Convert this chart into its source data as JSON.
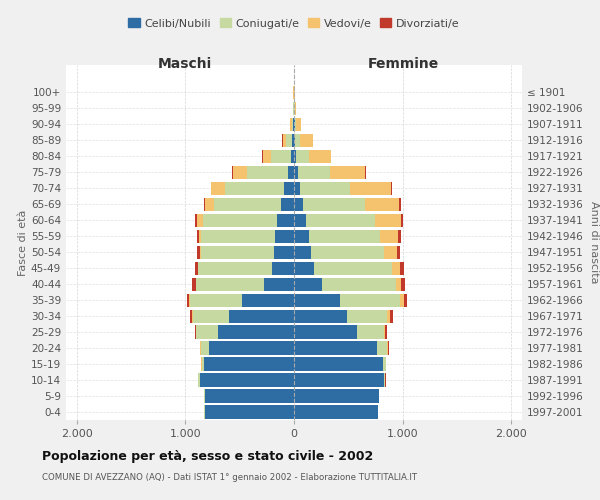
{
  "age_groups": [
    "0-4",
    "5-9",
    "10-14",
    "15-19",
    "20-24",
    "25-29",
    "30-34",
    "35-39",
    "40-44",
    "45-49",
    "50-54",
    "55-59",
    "60-64",
    "65-69",
    "70-74",
    "75-79",
    "80-84",
    "85-89",
    "90-94",
    "95-99",
    "100+"
  ],
  "birth_years": [
    "1997-2001",
    "1992-1996",
    "1987-1991",
    "1982-1986",
    "1977-1981",
    "1972-1976",
    "1967-1971",
    "1962-1966",
    "1957-1961",
    "1952-1956",
    "1947-1951",
    "1942-1946",
    "1937-1941",
    "1932-1936",
    "1927-1931",
    "1922-1926",
    "1917-1921",
    "1912-1916",
    "1907-1911",
    "1902-1906",
    "≤ 1901"
  ],
  "maschi_celibi": [
    820,
    820,
    870,
    830,
    780,
    700,
    600,
    480,
    280,
    200,
    180,
    175,
    160,
    120,
    90,
    55,
    30,
    15,
    8,
    4,
    2
  ],
  "maschi_coniugati": [
    5,
    5,
    10,
    20,
    80,
    200,
    330,
    480,
    620,
    680,
    680,
    680,
    680,
    620,
    550,
    380,
    180,
    60,
    15,
    5,
    2
  ],
  "maschi_vedovi": [
    1,
    1,
    1,
    2,
    2,
    3,
    5,
    5,
    5,
    5,
    10,
    20,
    50,
    80,
    120,
    130,
    80,
    30,
    10,
    2,
    1
  ],
  "maschi_divorziati": [
    1,
    1,
    2,
    3,
    5,
    10,
    20,
    25,
    30,
    30,
    25,
    22,
    18,
    12,
    8,
    5,
    3,
    2,
    0,
    0,
    0
  ],
  "femmine_celibi": [
    770,
    780,
    830,
    820,
    760,
    580,
    490,
    420,
    260,
    180,
    160,
    140,
    110,
    80,
    55,
    35,
    20,
    12,
    8,
    4,
    2
  ],
  "femmine_coniugati": [
    5,
    5,
    10,
    25,
    100,
    250,
    370,
    560,
    680,
    720,
    670,
    650,
    640,
    570,
    460,
    300,
    120,
    40,
    12,
    4,
    2
  ],
  "femmine_vedovi": [
    1,
    1,
    2,
    3,
    5,
    10,
    20,
    30,
    50,
    80,
    120,
    170,
    240,
    320,
    380,
    320,
    200,
    120,
    40,
    10,
    2
  ],
  "femmine_divorziati": [
    1,
    1,
    2,
    3,
    6,
    15,
    28,
    35,
    35,
    30,
    28,
    22,
    18,
    12,
    8,
    5,
    3,
    2,
    1,
    0,
    0
  ],
  "color_celibi": "#2e6ca4",
  "color_coniugati": "#c5d9a0",
  "color_vedovi": "#f5c36e",
  "color_divorziati": "#c0392b",
  "title": "Popolazione per età, sesso e stato civile - 2002",
  "subtitle": "COMUNE DI AVEZZANO (AQ) - Dati ISTAT 1° gennaio 2002 - Elaborazione TUTTITALIA.IT",
  "xlabel_left": "Maschi",
  "xlabel_right": "Femmine",
  "ylabel_left": "Fasce di età",
  "ylabel_right": "Anni di nascita",
  "xlim": 2100,
  "bg_color": "#f0f0f0",
  "plot_bg": "#ffffff",
  "grid_color": "#cccccc"
}
